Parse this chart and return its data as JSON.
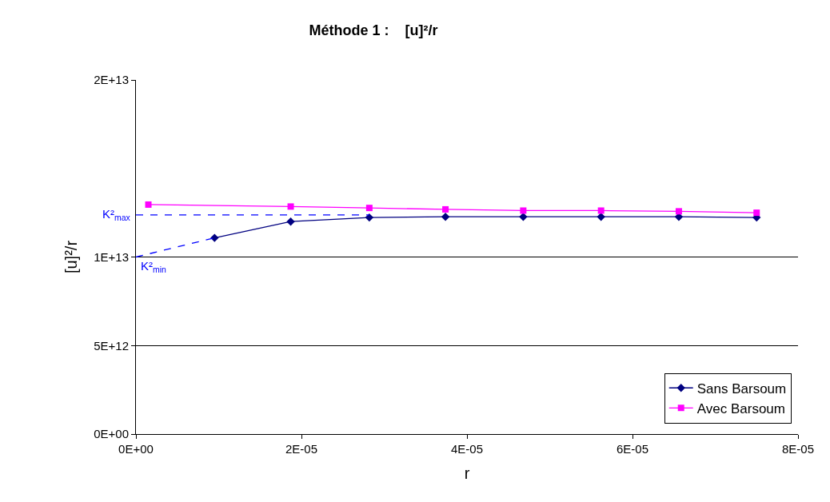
{
  "chart_data": {
    "type": "line",
    "title": "Méthode 1 :    [u]²/r",
    "xlabel": "r",
    "ylabel": "[u]²/r",
    "xlim": [
      0,
      8e-05
    ],
    "xticks": [
      {
        "value": 0,
        "label": "0E+00"
      },
      {
        "value": 2e-05,
        "label": "2E-05"
      },
      {
        "value": 4e-05,
        "label": "4E-05"
      },
      {
        "value": 6e-05,
        "label": "6E-05"
      },
      {
        "value": 8e-05,
        "label": "8E-05"
      }
    ],
    "ylim": [
      0,
      20000000000000.0
    ],
    "yticks": [
      {
        "value": 0,
        "label": "0E+00"
      },
      {
        "value": 5000000000000.0,
        "label": "5E+12"
      },
      {
        "value": 10000000000000.0,
        "label": "1E+13"
      },
      {
        "value": 20000000000000.0,
        "label": "2E+13"
      }
    ],
    "grid": "y",
    "legend": "bottom right",
    "series": [
      {
        "name": "Sans Barsoum",
        "color": "#000080",
        "marker": "diamond",
        "x": [
          9.5e-06,
          1.87e-05,
          2.82e-05,
          3.74e-05,
          4.68e-05,
          5.62e-05,
          6.56e-05,
          7.5e-05
        ],
        "values": [
          11080000000000.0,
          12000000000000.0,
          12230000000000.0,
          12270000000000.0,
          12270000000000.0,
          12270000000000.0,
          12270000000000.0,
          12230000000000.0
        ]
      },
      {
        "name": "Avec Barsoum",
        "color": "#ff00ff",
        "marker": "square",
        "x": [
          1.5e-06,
          1.87e-05,
          2.82e-05,
          3.74e-05,
          4.68e-05,
          5.62e-05,
          6.56e-05,
          7.5e-05
        ],
        "values": [
          12960000000000.0,
          12850000000000.0,
          12770000000000.0,
          12690000000000.0,
          12620000000000.0,
          12620000000000.0,
          12580000000000.0,
          12500000000000.0
        ]
      },
      {
        "color": "#0000ff",
        "marker": "none",
        "line_style": "dashed",
        "x": [
          0,
          2.82e-05
        ],
        "values": [
          12380000000000.0,
          12380000000000.0
        ]
      },
      {
        "color": "#0000ff",
        "marker": "none",
        "line_style": "dashed",
        "x": [
          0,
          9.5e-06
        ],
        "values": [
          10000000000000.0,
          11080000000000.0
        ]
      }
    ],
    "annotations": [
      {
        "text": "K²$_{max}$",
        "x": 0,
        "y": 12380000000000.0
      },
      {
        "text": "K²$_{min}$",
        "x": 0,
        "y": 10000000000000.0
      }
    ]
  }
}
